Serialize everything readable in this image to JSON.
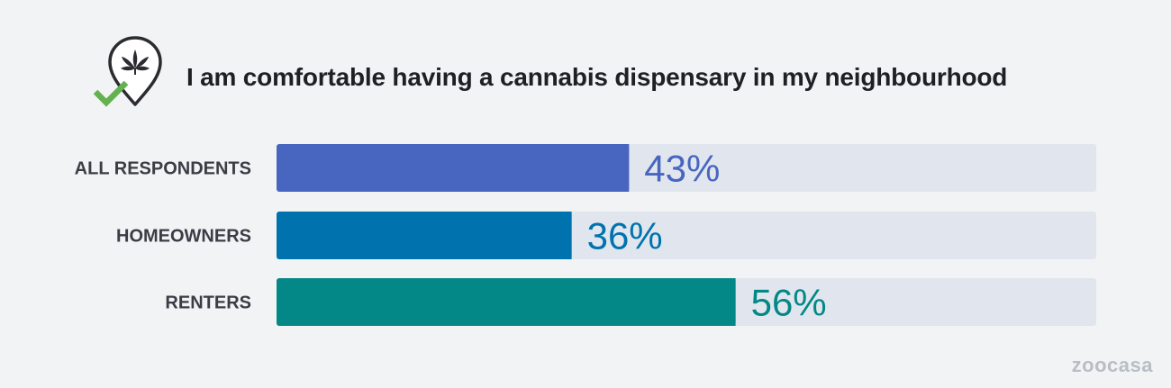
{
  "header": {
    "title": "I am comfortable having a cannabis dispensary in my neighbourhood",
    "icon": "cannabis-location-check-icon"
  },
  "brand": {
    "logo_text": "zoocasa"
  },
  "colors": {
    "background": "#f2f3f5",
    "track": "#e1e6ee",
    "all_respondents": "#4866c0",
    "homeowners": "#0073ae",
    "renters": "#048887",
    "check": "#63b14f",
    "label": "#3a3d45"
  },
  "chart_data": {
    "type": "bar",
    "orientation": "horizontal",
    "title": "I am comfortable having a cannabis dispensary in my neighbourhood",
    "categories": [
      "ALL RESPONDENTS",
      "HOMEOWNERS",
      "RENTERS"
    ],
    "values": [
      43,
      36,
      56
    ],
    "value_labels": [
      "43%",
      "36%",
      "56%"
    ],
    "unit": "%",
    "xlim": [
      0,
      100
    ],
    "grid": false,
    "legend": "none",
    "bar_colors": [
      "#4866c0",
      "#0073ae",
      "#048887"
    ]
  }
}
